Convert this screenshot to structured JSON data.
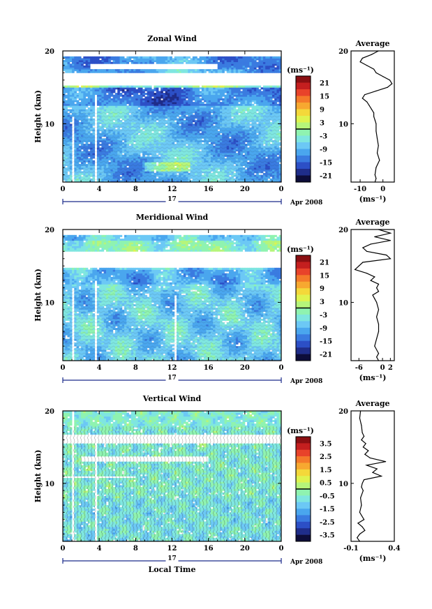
{
  "chart_data": [
    {
      "type": "heatmap",
      "title": "Zonal Wind",
      "xlabel": "",
      "ylabel": "Height (km)",
      "x_ticks": [
        "0",
        "4",
        "8",
        "12",
        "16",
        "20",
        "0"
      ],
      "y_ticks": [
        "20",
        "10"
      ],
      "xlim": [
        0,
        24
      ],
      "ylim": [
        2,
        20
      ],
      "date_label": "17",
      "month_label": "Apr 2008",
      "colorbar": {
        "unit": "(ms⁻¹)",
        "ticks": [
          "21",
          "15",
          "9",
          "3",
          "-3",
          "-9",
          "-15",
          "-21"
        ],
        "levels": [
          24,
          21,
          18,
          15,
          12,
          9,
          6,
          3,
          0,
          -3,
          -6,
          -9,
          -12,
          -15,
          -18,
          -21,
          -24
        ]
      },
      "profile": {
        "title": "Average",
        "xlabel": "(ms⁻¹)",
        "x_ticks": [
          "-10",
          "0"
        ],
        "xlim": [
          -14,
          5
        ],
        "y_ticks": [
          "20",
          "10"
        ],
        "ylim": [
          2,
          20
        ],
        "heights": [
          20,
          19.5,
          19,
          18.5,
          18,
          17.5,
          17,
          16.5,
          16,
          15.5,
          15,
          14.5,
          14,
          13.5,
          13,
          12.5,
          12,
          11.5,
          11,
          10.5,
          10,
          9,
          8,
          7,
          6,
          5,
          4,
          3,
          2.5,
          2
        ],
        "values": [
          -2,
          -5,
          -9,
          -10,
          -7,
          -4,
          -3,
          0,
          3,
          4,
          2,
          -3,
          -8,
          -9,
          -7,
          -6,
          -5,
          -4,
          -4,
          -3.5,
          -3,
          -3,
          -2.5,
          -2,
          -2.5,
          -1.5,
          -3,
          -3.5,
          -3,
          -3.5
        ]
      }
    },
    {
      "type": "heatmap",
      "title": "Meridional Wind",
      "xlabel": "",
      "ylabel": "Height (km)",
      "x_ticks": [
        "0",
        "4",
        "8",
        "12",
        "16",
        "20",
        "0"
      ],
      "y_ticks": [
        "20",
        "10"
      ],
      "xlim": [
        0,
        24
      ],
      "ylim": [
        2,
        20
      ],
      "date_label": "17",
      "month_label": "Apr 2008",
      "colorbar": {
        "unit": "(ms⁻¹)",
        "ticks": [
          "21",
          "15",
          "9",
          "3",
          "-3",
          "-9",
          "-15",
          "-21"
        ],
        "levels": [
          24,
          21,
          18,
          15,
          12,
          9,
          6,
          3,
          0,
          -3,
          -6,
          -9,
          -12,
          -15,
          -18,
          -21,
          -24
        ]
      },
      "profile": {
        "title": "Average",
        "xlabel": "(ms⁻¹)",
        "x_ticks": [
          "-6",
          "0",
          "2"
        ],
        "xlim": [
          -8,
          3
        ],
        "y_ticks": [
          "20",
          "10"
        ],
        "ylim": [
          2,
          20
        ],
        "heights": [
          20,
          19.5,
          19,
          18.5,
          18,
          17.5,
          17,
          16.5,
          16,
          15.5,
          15,
          14.5,
          14,
          13.5,
          13,
          12.5,
          12,
          11.5,
          11,
          10.5,
          10,
          9,
          8,
          7,
          6,
          5,
          4,
          3,
          2.5,
          2
        ],
        "values": [
          -1,
          2,
          -2,
          2,
          -3,
          -5,
          -4,
          1,
          2,
          -5,
          -6,
          -7,
          -4,
          -2,
          -3,
          -1,
          -1.5,
          -1,
          -2.5,
          -2,
          -1.5,
          -1,
          -1.5,
          -1,
          -1,
          -1.5,
          -2,
          -1,
          -1.5,
          -1
        ]
      }
    },
    {
      "type": "heatmap",
      "title": "Vertical Wind",
      "xlabel": "Local Time",
      "ylabel": "Height (km)",
      "x_ticks": [
        "0",
        "4",
        "8",
        "12",
        "16",
        "20",
        "0"
      ],
      "y_ticks": [
        "20",
        "10"
      ],
      "xlim": [
        0,
        24
      ],
      "ylim": [
        2,
        20
      ],
      "date_label": "17",
      "month_label": "Apr 2008",
      "colorbar": {
        "unit": "(ms⁻¹)",
        "ticks": [
          "3.5",
          "2.5",
          "1.5",
          "0.5",
          "-0.5",
          "-1.5",
          "-2.5",
          "-3.5"
        ],
        "levels": [
          4,
          3.5,
          3,
          2.5,
          2,
          1.5,
          1,
          0.5,
          0,
          -0.5,
          -1,
          -1.5,
          -2,
          -2.5,
          -3,
          -3.5,
          -4
        ]
      },
      "profile": {
        "title": "Average",
        "xlabel": "(ms⁻¹)",
        "x_ticks": [
          "-0.1",
          "0.4"
        ],
        "xlim": [
          -0.1,
          0.4
        ],
        "y_ticks": [
          "20",
          "10"
        ],
        "ylim": [
          2,
          20
        ],
        "heights": [
          20,
          19,
          18,
          17,
          16.5,
          16,
          15.5,
          15,
          14.5,
          14,
          13.5,
          13,
          12.5,
          12,
          11.5,
          11,
          10.5,
          10,
          9.5,
          9,
          8,
          7,
          6,
          5,
          4.5,
          4,
          3.5,
          3,
          2.5,
          2
        ],
        "values": [
          0.01,
          0.0,
          0.02,
          0.03,
          0.05,
          0.02,
          0.07,
          0.04,
          0.1,
          0.06,
          0.12,
          0.3,
          0.08,
          0.2,
          0.15,
          0.25,
          0.05,
          0.03,
          0.02,
          0.04,
          0.01,
          0.02,
          0.0,
          0.05,
          -0.02,
          0.03,
          0.06,
          0.0,
          -0.03,
          0.0
        ]
      }
    }
  ],
  "colors": {
    "ramp": [
      "#0d0d3a",
      "#1f2d8a",
      "#2c4fc6",
      "#3a7be0",
      "#4aa6ee",
      "#6cc8f5",
      "#7fe6e0",
      "#8ff3b0",
      "#b6f57a",
      "#dff34f",
      "#f4d83a",
      "#f7a830",
      "#f47a2a",
      "#e8432a",
      "#c41f1f",
      "#8a0f12"
    ]
  }
}
